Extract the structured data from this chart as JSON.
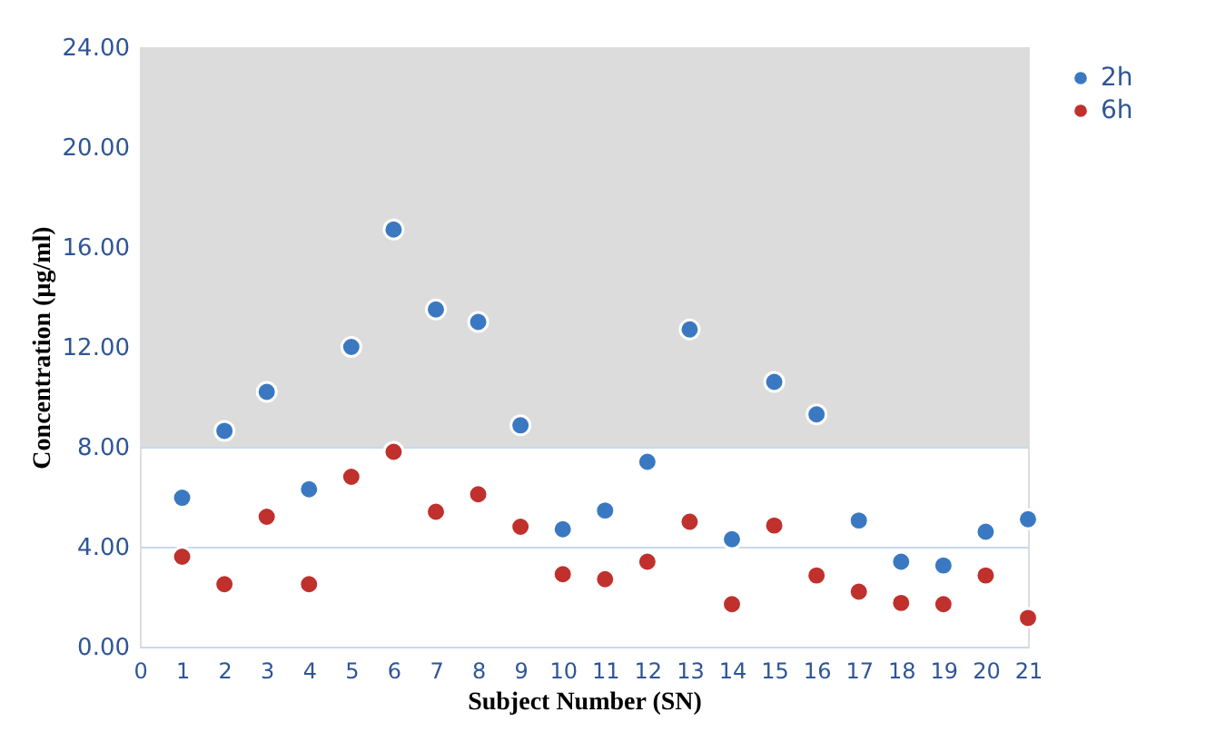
{
  "chart_data": {
    "type": "scatter",
    "xlabel": "Subject Number (SN)",
    "ylabel": "Concentration (µg/ml)",
    "x": [
      1,
      2,
      3,
      4,
      5,
      6,
      7,
      8,
      9,
      10,
      11,
      12,
      13,
      14,
      15,
      16,
      17,
      18,
      19,
      20,
      21
    ],
    "series": [
      {
        "name": "2h",
        "color": "#3a78c2",
        "values": [
          5.96,
          8.64,
          10.2,
          6.3,
          12.0,
          16.7,
          13.5,
          13.0,
          8.86,
          4.7,
          5.45,
          7.4,
          12.7,
          4.3,
          10.6,
          9.3,
          5.05,
          3.4,
          3.25,
          4.6,
          5.1
        ]
      },
      {
        "name": "6h",
        "color": "#c0302c",
        "values": [
          3.6,
          2.5,
          5.2,
          2.5,
          6.8,
          7.8,
          5.4,
          6.1,
          4.8,
          2.9,
          2.7,
          3.4,
          5.0,
          1.7,
          4.85,
          2.85,
          2.2,
          1.75,
          1.7,
          2.85,
          1.15
        ]
      }
    ],
    "xlim": [
      0,
      21
    ],
    "xticks": [
      0,
      1,
      2,
      3,
      4,
      5,
      6,
      7,
      8,
      9,
      10,
      11,
      12,
      13,
      14,
      15,
      16,
      17,
      18,
      19,
      20,
      21
    ],
    "ylim": [
      0,
      24
    ],
    "yticks": [
      {
        "value": 0,
        "label": "0.00"
      },
      {
        "value": 4,
        "label": "4.00"
      },
      {
        "value": 8,
        "label": "8.00"
      },
      {
        "value": 12,
        "label": "12.00"
      },
      {
        "value": 16,
        "label": "16.00"
      },
      {
        "value": 20,
        "label": "20.00"
      },
      {
        "value": 24,
        "label": "24.00"
      }
    ],
    "bands": [
      {
        "axis": "y",
        "from": 8,
        "to": 24,
        "color": "#dcdcdc"
      }
    ],
    "grid": "y",
    "legend": "right",
    "marker": "circle"
  }
}
